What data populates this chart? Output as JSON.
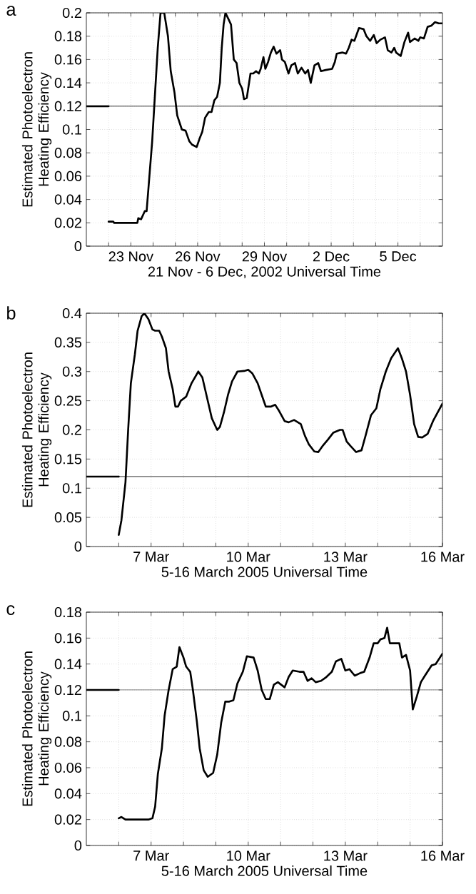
{
  "chart_data": [
    {
      "type": "line",
      "title": "a",
      "xlabel": "21 Nov - 6 Dec, 2002 Universal Time",
      "ylabel": "Estimated Photoelectron Heating Efficiency",
      "grid": true,
      "xlim": [
        "2002-11-21",
        "2002-12-07"
      ],
      "ylim": [
        0,
        0.2
      ],
      "xticks": [
        {
          "value": "2002-11-22",
          "label": null
        },
        {
          "value": "2002-11-23",
          "label": "23 Nov"
        },
        {
          "value": "2002-11-24",
          "label": null
        },
        {
          "value": "2002-11-25",
          "label": null
        },
        {
          "value": "2002-11-26",
          "label": "26 Nov"
        },
        {
          "value": "2002-11-27",
          "label": null
        },
        {
          "value": "2002-11-28",
          "label": null
        },
        {
          "value": "2002-11-29",
          "label": "29 Nov"
        },
        {
          "value": "2002-11-30",
          "label": null
        },
        {
          "value": "2002-12-01",
          "label": null
        },
        {
          "value": "2002-12-02",
          "label": "2 Dec"
        },
        {
          "value": "2002-12-03",
          "label": null
        },
        {
          "value": "2002-12-04",
          "label": null
        },
        {
          "value": "2002-12-05",
          "label": "5 Dec"
        },
        {
          "value": "2002-12-06",
          "label": null
        }
      ],
      "yticks": [
        0,
        0.02,
        0.04,
        0.06,
        0.08,
        0.1,
        0.12,
        0.14,
        0.16,
        0.18,
        0.2
      ],
      "ref_lines": [
        {
          "axis": "y",
          "value": 0.12,
          "color": "#000000"
        }
      ],
      "series": [
        {
          "color": "#000000",
          "x": [
            "2002-11-21T00:00",
            "2002-11-22T00:00"
          ],
          "values": [
            0.12,
            0.12
          ]
        },
        {
          "color": "#000000",
          "x": [
            "2002-11-22T00:00",
            "2002-11-22T05:00",
            "2002-11-22T06:00",
            "2002-11-23T07:00",
            "2002-11-23T08:00",
            "2002-11-23T11:00",
            "2002-11-23T15:00",
            "2002-11-23T17:00",
            "2002-11-23T19:00",
            "2002-11-23T23:00",
            "2002-11-24T02:00",
            "2002-11-24T05:00",
            "2002-11-24T08:00",
            "2002-11-24T12:00",
            "2002-11-24T16:00",
            "2002-11-24T19:00",
            "2002-11-24T23:00",
            "2002-11-25T02:00",
            "2002-11-25T07:00",
            "2002-11-25T11:00",
            "2002-11-25T15:00",
            "2002-11-25T18:00",
            "2002-11-25T23:00",
            "2002-11-26T02:00",
            "2002-11-26T05:00",
            "2002-11-26T08:00",
            "2002-11-26T12:00",
            "2002-11-26T15:00",
            "2002-11-26T18:00",
            "2002-11-26T21:00",
            "2002-11-27T00:00",
            "2002-11-27T02:00",
            "2002-11-27T04:00",
            "2002-11-27T06:00",
            "2002-11-27T09:00",
            "2002-11-27T12:00",
            "2002-11-27T15:00",
            "2002-11-27T18:00",
            "2002-11-27T21:00",
            "2002-11-28T00:00",
            "2002-11-28T02:00",
            "2002-11-28T05:00",
            "2002-11-28T09:00",
            "2002-11-28T12:00",
            "2002-11-28T15:00",
            "2002-11-28T18:00",
            "2002-11-28T20:00",
            "2002-11-28T23:00",
            "2002-11-29T01:00",
            "2002-11-29T04:00",
            "2002-11-29T07:00",
            "2002-11-29T10:00",
            "2002-11-29T13:00",
            "2002-11-29T17:00",
            "2002-11-29T19:00",
            "2002-11-29T22:00",
            "2002-11-30T02:00",
            "2002-11-30T05:00",
            "2002-11-30T09:00",
            "2002-11-30T12:00",
            "2002-11-30T16:00",
            "2002-11-30T20:00",
            "2002-11-30T23:00",
            "2002-12-01T02:00",
            "2002-12-01T06:00",
            "2002-12-01T10:00",
            "2002-12-01T13:00",
            "2002-12-01T18:00",
            "2002-12-02T01:00",
            "2002-12-02T04:00",
            "2002-12-02T06:00",
            "2002-12-02T12:00",
            "2002-12-02T16:00",
            "2002-12-02T19:00",
            "2002-12-02T22:00",
            "2002-12-03T01:00",
            "2002-12-03T06:00",
            "2002-12-03T11:00",
            "2002-12-03T14:00",
            "2002-12-03T18:00",
            "2002-12-03T22:00",
            "2002-12-04T01:00",
            "2002-12-04T05:00",
            "2002-12-04T10:00",
            "2002-12-04T13:00",
            "2002-12-04T17:00",
            "2002-12-04T20:00",
            "2002-12-04T22:00",
            "2002-12-05T03:00",
            "2002-12-05T07:00",
            "2002-12-05T11:00",
            "2002-12-05T13:00",
            "2002-12-05T18:00",
            "2002-12-05T22:00",
            "2002-12-06T00:00",
            "2002-12-06T04:00",
            "2002-12-06T08:00",
            "2002-12-06T12:00",
            "2002-12-06T16:00",
            "2002-12-06T20:00",
            "2002-12-07T00:00"
          ],
          "values": [
            0.021,
            0.021,
            0.02,
            0.02,
            0.024,
            0.023,
            0.03,
            0.03,
            0.05,
            0.09,
            0.13,
            0.17,
            0.2,
            0.2,
            0.18,
            0.15,
            0.132,
            0.112,
            0.1,
            0.099,
            0.09,
            0.087,
            0.085,
            0.092,
            0.098,
            0.11,
            0.115,
            0.115,
            0.125,
            0.128,
            0.14,
            0.17,
            0.19,
            0.2,
            0.195,
            0.19,
            0.16,
            0.157,
            0.14,
            0.135,
            0.126,
            0.127,
            0.148,
            0.148,
            0.15,
            0.148,
            0.152,
            0.162,
            0.152,
            0.158,
            0.166,
            0.171,
            0.165,
            0.168,
            0.16,
            0.158,
            0.148,
            0.155,
            0.157,
            0.148,
            0.153,
            0.148,
            0.151,
            0.14,
            0.155,
            0.157,
            0.15,
            0.151,
            0.152,
            0.158,
            0.165,
            0.166,
            0.165,
            0.17,
            0.177,
            0.176,
            0.187,
            0.186,
            0.18,
            0.176,
            0.181,
            0.174,
            0.177,
            0.179,
            0.168,
            0.166,
            0.17,
            0.166,
            0.163,
            0.175,
            0.183,
            0.175,
            0.178,
            0.176,
            0.179,
            0.178,
            0.188,
            0.189,
            0.192,
            0.191,
            0.191
          ]
        }
      ]
    },
    {
      "type": "line",
      "title": "b",
      "xlabel": "5-16 March 2005 Universal Time",
      "ylabel": "Estimated Photoelectron Heating Efficiency",
      "grid": true,
      "xlim": [
        "2005-03-05",
        "2005-03-16"
      ],
      "ylim": [
        0,
        0.4
      ],
      "xticks": [
        {
          "value": "2005-03-06",
          "label": null
        },
        {
          "value": "2005-03-07",
          "label": "7 Mar"
        },
        {
          "value": "2005-03-08",
          "label": null
        },
        {
          "value": "2005-03-09",
          "label": null
        },
        {
          "value": "2005-03-10",
          "label": "10 Mar"
        },
        {
          "value": "2005-03-11",
          "label": null
        },
        {
          "value": "2005-03-12",
          "label": null
        },
        {
          "value": "2005-03-13",
          "label": "13 Mar"
        },
        {
          "value": "2005-03-14",
          "label": null
        },
        {
          "value": "2005-03-15",
          "label": null
        },
        {
          "value": "2005-03-16",
          "label": "16 Mar"
        }
      ],
      "yticks": [
        0,
        0.05,
        0.1,
        0.15,
        0.2,
        0.25,
        0.3,
        0.35,
        0.4
      ],
      "ref_lines": [
        {
          "axis": "y",
          "value": 0.12,
          "color": "#000000"
        }
      ],
      "series": [
        {
          "color": "#000000",
          "x": [
            "2005-03-05T00:00",
            "2005-03-06T00:00"
          ],
          "values": [
            0.12,
            0.12
          ]
        },
        {
          "color": "#000000",
          "x": [
            "2005-03-06T00:00",
            "2005-03-06T02:00",
            "2005-03-06T05:00",
            "2005-03-06T07:00",
            "2005-03-06T09:00",
            "2005-03-06T12:00",
            "2005-03-06T14:00",
            "2005-03-06T17:00",
            "2005-03-06T19:00",
            "2005-03-06T22:00",
            "2005-03-07T01:00",
            "2005-03-07T03:00",
            "2005-03-07T06:00",
            "2005-03-07T08:00",
            "2005-03-07T11:00",
            "2005-03-07T13:00",
            "2005-03-07T16:00",
            "2005-03-07T18:00",
            "2005-03-07T20:00",
            "2005-03-07T22:00",
            "2005-03-08T02:00",
            "2005-03-08T06:00",
            "2005-03-08T11:00",
            "2005-03-08T14:00",
            "2005-03-08T17:00",
            "2005-03-08T21:00",
            "2005-03-09T01:00",
            "2005-03-09T03:00",
            "2005-03-09T06:00",
            "2005-03-09T09:00",
            "2005-03-09T12:00",
            "2005-03-09T16:00",
            "2005-03-09T21:00",
            "2005-03-10T00:00",
            "2005-03-10T03:00",
            "2005-03-10T07:00",
            "2005-03-10T10:00",
            "2005-03-10T13:00",
            "2005-03-10T17:00",
            "2005-03-10T20:00",
            "2005-03-10T23:00",
            "2005-03-11T03:00",
            "2005-03-11T06:00",
            "2005-03-11T10:00",
            "2005-03-11T15:00",
            "2005-03-11T18:00",
            "2005-03-11T21:00",
            "2005-03-12T01:00",
            "2005-03-12T04:00",
            "2005-03-12T07:00",
            "2005-03-12T11:00",
            "2005-03-12T15:00",
            "2005-03-12T20:00",
            "2005-03-12T22:00",
            "2005-03-13T01:00",
            "2005-03-13T04:00",
            "2005-03-13T08:00",
            "2005-03-13T12:00",
            "2005-03-13T15:00",
            "2005-03-13T19:00",
            "2005-03-13T23:00",
            "2005-03-14T02:00",
            "2005-03-14T06:00",
            "2005-03-14T10:00",
            "2005-03-14T15:00",
            "2005-03-14T18:00",
            "2005-03-14T21:00",
            "2005-03-15T00:00",
            "2005-03-15T03:00",
            "2005-03-15T06:00",
            "2005-03-15T09:00",
            "2005-03-15T13:00",
            "2005-03-15T17:00",
            "2005-03-15T20:00",
            "2005-03-16T00:00"
          ],
          "values": [
            0.02,
            0.045,
            0.11,
            0.2,
            0.28,
            0.33,
            0.37,
            0.395,
            0.4,
            0.39,
            0.372,
            0.37,
            0.37,
            0.36,
            0.34,
            0.3,
            0.27,
            0.24,
            0.24,
            0.25,
            0.257,
            0.28,
            0.3,
            0.29,
            0.26,
            0.22,
            0.2,
            0.205,
            0.23,
            0.26,
            0.283,
            0.3,
            0.301,
            0.303,
            0.297,
            0.28,
            0.26,
            0.24,
            0.24,
            0.243,
            0.232,
            0.215,
            0.213,
            0.217,
            0.21,
            0.19,
            0.175,
            0.163,
            0.162,
            0.172,
            0.183,
            0.195,
            0.2,
            0.2,
            0.18,
            0.172,
            0.162,
            0.165,
            0.19,
            0.225,
            0.237,
            0.27,
            0.3,
            0.323,
            0.34,
            0.322,
            0.3,
            0.26,
            0.21,
            0.188,
            0.187,
            0.193,
            0.215,
            0.228,
            0.245
          ]
        }
      ]
    },
    {
      "type": "line",
      "title": "c",
      "xlabel": "5-16 March 2005 Universal Time",
      "ylabel": "Estimated Photoelectron Heating Efficiency",
      "grid": true,
      "xlim": [
        "2005-03-05",
        "2005-03-16"
      ],
      "ylim": [
        0,
        0.18
      ],
      "xticks": [
        {
          "value": "2005-03-06",
          "label": null
        },
        {
          "value": "2005-03-07",
          "label": "7 Mar"
        },
        {
          "value": "2005-03-08",
          "label": null
        },
        {
          "value": "2005-03-09",
          "label": null
        },
        {
          "value": "2005-03-10",
          "label": "10 Mar"
        },
        {
          "value": "2005-03-11",
          "label": null
        },
        {
          "value": "2005-03-12",
          "label": null
        },
        {
          "value": "2005-03-13",
          "label": "13 Mar"
        },
        {
          "value": "2005-03-14",
          "label": null
        },
        {
          "value": "2005-03-15",
          "label": null
        },
        {
          "value": "2005-03-16",
          "label": "16 Mar"
        }
      ],
      "yticks": [
        0,
        0.02,
        0.04,
        0.06,
        0.08,
        0.1,
        0.12,
        0.14,
        0.16,
        0.18
      ],
      "ref_lines": [
        {
          "axis": "y",
          "value": 0.12,
          "color": "#000000"
        }
      ],
      "series": [
        {
          "color": "#000000",
          "x": [
            "2005-03-05T00:00",
            "2005-03-06T00:00"
          ],
          "values": [
            0.12,
            0.12
          ]
        },
        {
          "color": "#000000",
          "x": [
            "2005-03-06T00:00",
            "2005-03-06T02:00",
            "2005-03-06T05:00",
            "2005-03-06T09:00",
            "2005-03-06T16:00",
            "2005-03-06T22:00",
            "2005-03-07T01:00",
            "2005-03-07T03:00",
            "2005-03-07T05:00",
            "2005-03-07T08:00",
            "2005-03-07T10:00",
            "2005-03-07T13:00",
            "2005-03-07T16:00",
            "2005-03-07T19:00",
            "2005-03-07T21:00",
            "2005-03-08T00:00",
            "2005-03-08T02:00",
            "2005-03-08T05:00",
            "2005-03-08T07:00",
            "2005-03-08T10:00",
            "2005-03-08T12:00",
            "2005-03-08T15:00",
            "2005-03-08T18:00",
            "2005-03-08T22:00",
            "2005-03-09T01:00",
            "2005-03-09T04:00",
            "2005-03-09T07:00",
            "2005-03-09T10:00",
            "2005-03-09T13:00",
            "2005-03-09T16:00",
            "2005-03-09T20:00",
            "2005-03-09T23:00",
            "2005-03-10T04:00",
            "2005-03-10T07:00",
            "2005-03-10T10:00",
            "2005-03-10T13:00",
            "2005-03-10T16:00",
            "2005-03-10T19:00",
            "2005-03-10T22:00",
            "2005-03-11T03:00",
            "2005-03-11T06:00",
            "2005-03-11T09:00",
            "2005-03-11T14:00",
            "2005-03-11T17:00",
            "2005-03-11T20:00",
            "2005-03-11T23:00",
            "2005-03-12T02:00",
            "2005-03-12T06:00",
            "2005-03-12T10:00",
            "2005-03-12T14:00",
            "2005-03-12T17:00",
            "2005-03-12T21:00",
            "2005-03-13T00:00",
            "2005-03-13T03:00",
            "2005-03-13T07:00",
            "2005-03-13T11:00",
            "2005-03-13T14:00",
            "2005-03-13T18:00",
            "2005-03-13T21:00",
            "2005-03-14T00:00",
            "2005-03-14T02:00",
            "2005-03-14T05:00",
            "2005-03-14T07:00",
            "2005-03-14T09:00",
            "2005-03-14T12:00",
            "2005-03-14T16:00",
            "2005-03-14T18:00",
            "2005-03-14T21:00",
            "2005-03-15T00:00",
            "2005-03-15T02:00",
            "2005-03-15T05:00",
            "2005-03-15T08:00",
            "2005-03-15T11:00",
            "2005-03-15T16:00",
            "2005-03-15T19:00",
            "2005-03-16T00:00"
          ],
          "values": [
            0.021,
            0.022,
            0.02,
            0.02,
            0.02,
            0.02,
            0.021,
            0.03,
            0.055,
            0.075,
            0.1,
            0.12,
            0.136,
            0.138,
            0.153,
            0.145,
            0.138,
            0.134,
            0.12,
            0.095,
            0.075,
            0.058,
            0.053,
            0.056,
            0.07,
            0.095,
            0.111,
            0.111,
            0.112,
            0.125,
            0.134,
            0.146,
            0.145,
            0.135,
            0.12,
            0.113,
            0.113,
            0.124,
            0.126,
            0.122,
            0.13,
            0.135,
            0.134,
            0.134,
            0.127,
            0.129,
            0.126,
            0.127,
            0.13,
            0.134,
            0.142,
            0.144,
            0.135,
            0.136,
            0.131,
            0.133,
            0.134,
            0.145,
            0.156,
            0.156,
            0.159,
            0.16,
            0.168,
            0.156,
            0.156,
            0.156,
            0.145,
            0.147,
            0.135,
            0.105,
            0.115,
            0.126,
            0.131,
            0.139,
            0.14,
            0.148
          ]
        }
      ]
    }
  ]
}
